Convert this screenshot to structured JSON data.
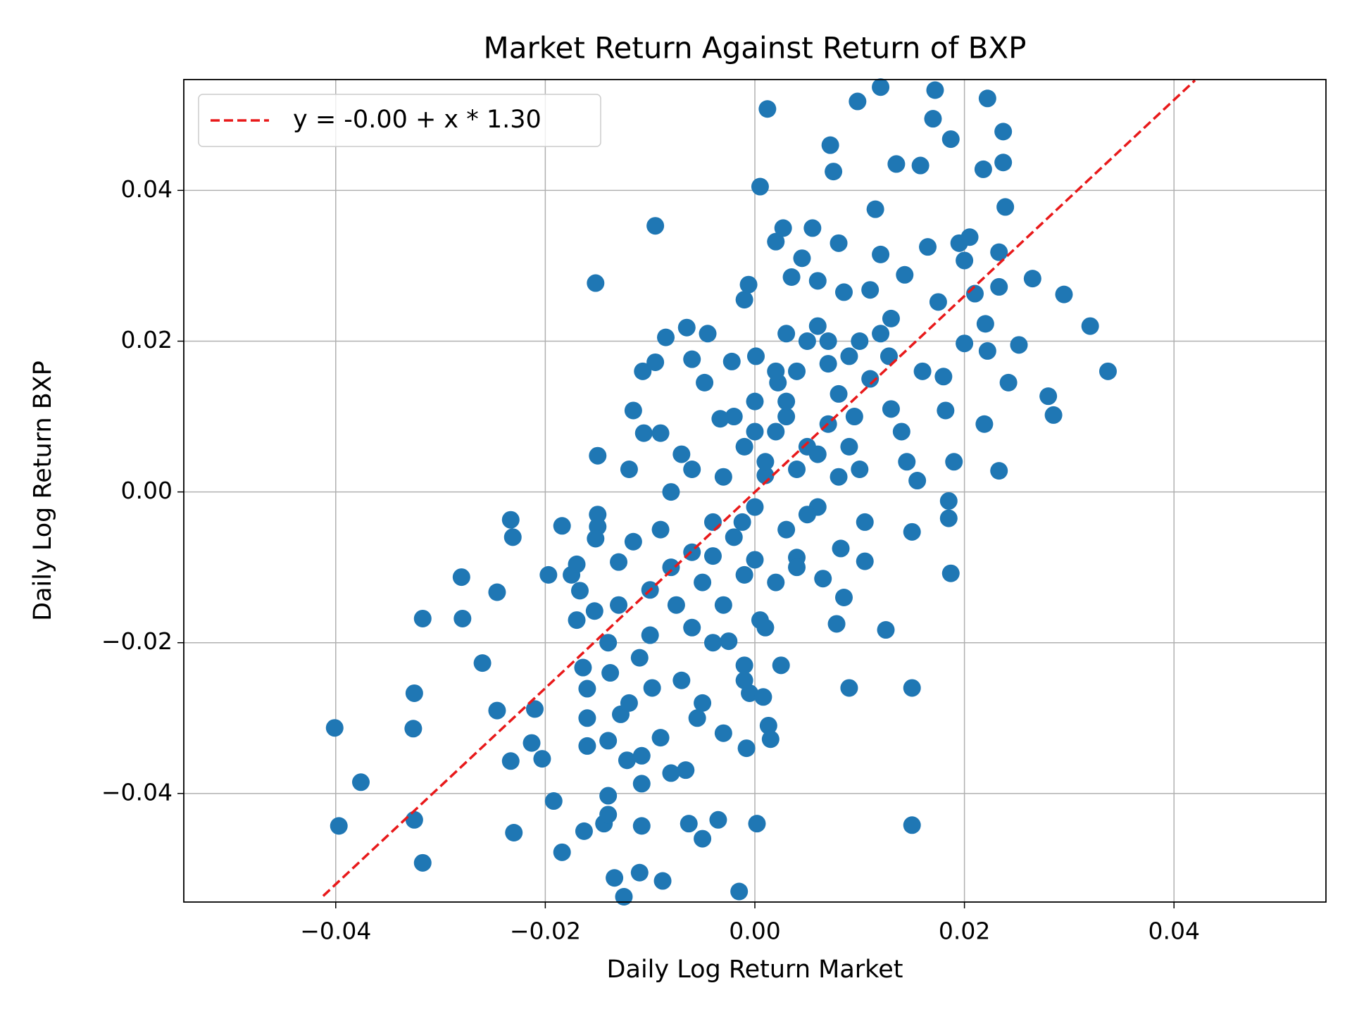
{
  "chart_data": {
    "type": "scatter",
    "title": "Market Return Against Return of BXP",
    "xlabel": "Daily Log Return Market",
    "ylabel": "Daily Log Return BXP",
    "xlim": [
      -0.0545,
      0.0545
    ],
    "ylim": [
      -0.0544,
      0.0547
    ],
    "xticks": [
      {
        "value": -0.04,
        "label": "−0.04"
      },
      {
        "value": -0.02,
        "label": "−0.02"
      },
      {
        "value": 0,
        "label": "0.00"
      },
      {
        "value": 0.02,
        "label": "0.02"
      },
      {
        "value": 0.04,
        "label": "0.04"
      }
    ],
    "yticks": [
      {
        "value": -0.04,
        "label": "−0.04"
      },
      {
        "value": -0.02,
        "label": "−0.02"
      },
      {
        "value": 0,
        "label": "0.00"
      },
      {
        "value": 0.02,
        "label": "0.02"
      },
      {
        "value": 0.04,
        "label": "0.04"
      }
    ],
    "grid": true,
    "legend": "upper left",
    "series": [
      {
        "type": "scatter",
        "color": "#1f77b4",
        "x": [
          -0.0401,
          -0.0397,
          -0.0376,
          -0.0325,
          -0.0325,
          -0.0326,
          -0.0317,
          -0.0317,
          -0.028,
          -0.0279,
          -0.026,
          -0.0246,
          -0.0246,
          -0.0233,
          -0.0231,
          -0.0233,
          -0.023,
          -0.0213,
          -0.021,
          -0.0203,
          -0.0197,
          -0.0192,
          -0.0184,
          -0.0184,
          -0.0175,
          -0.017,
          -0.0167,
          -0.0164,
          -0.016,
          -0.016,
          -0.0163,
          -0.015,
          -0.015,
          -0.0152,
          -0.0153,
          -0.0152,
          -0.015,
          -0.0144,
          -0.014,
          -0.014,
          -0.014,
          -0.0138,
          -0.0134,
          -0.013,
          -0.0125,
          -0.0128,
          -0.0122,
          -0.0116,
          -0.0116,
          -0.011,
          -0.0108,
          -0.0108,
          -0.0108,
          -0.0107,
          -0.0106,
          -0.01,
          -0.0098,
          -0.0095,
          -0.0095,
          -0.009,
          -0.009,
          -0.0088,
          -0.0085,
          -0.008,
          -0.0075,
          -0.007,
          -0.0066,
          -0.0065,
          -0.0063,
          -0.006,
          -0.0055,
          -0.005,
          -0.0048,
          -0.0045,
          -0.004,
          -0.0035,
          -0.0033,
          -0.003,
          -0.0025,
          -0.0022,
          -0.0015,
          -0.0012,
          -0.001,
          -0.001,
          -0.0008,
          -0.0006,
          -0.0005,
          0,
          0,
          0.0001,
          0.0002,
          0.0005,
          0.0005,
          0.0008,
          0.001,
          0.0012,
          0.0013,
          0.0015,
          0.002,
          0.0022,
          0.0025,
          0.0027,
          0.003,
          0.0035,
          0.004,
          0.0045,
          0.005,
          0.0055,
          0.006,
          0.0065,
          0.007,
          0.0072,
          0.0075,
          0.0078,
          0.008,
          0.0082,
          0.0085,
          0.0085,
          0.009,
          0.0095,
          0.0098,
          0.01,
          0.0105,
          0.0105,
          0.011,
          0.0115,
          0.012,
          0.012,
          0.0125,
          0.0128,
          0.013,
          0.0135,
          0.014,
          0.0143,
          0.0145,
          0.015,
          0.015,
          0.015,
          0.0155,
          0.0158,
          0.016,
          0.0165,
          0.017,
          0.0172,
          0.0175,
          0.018,
          0.0182,
          0.0185,
          0.0185,
          0.0187,
          0.019,
          0.0187,
          0.0195,
          0.02,
          0.0205,
          0.02,
          0.021,
          0.0218,
          0.022,
          0.0222,
          0.0219,
          0.0222,
          0.0233,
          0.0233,
          0.0233,
          0.0237,
          0.0237,
          0.0239,
          0.0242,
          0.0252,
          0.0265,
          0.028,
          0.0285,
          0.0295,
          0.032,
          0.0337,
          -0.006,
          -0.005,
          -0.004,
          -0.003,
          -0.002,
          -0.001,
          0,
          0.001,
          0.002,
          0.003,
          0.004,
          0.005,
          0.006,
          0.007,
          0.008,
          0.009,
          0.01,
          0.011,
          0.012,
          0.013,
          0.004,
          0.003,
          0.002,
          0.001,
          -0.001,
          -0.002,
          -0.003,
          -0.004,
          -0.006,
          -0.008,
          -0.009,
          -0.01,
          -0.011,
          -0.012,
          -0.013,
          -0.007,
          -0.005,
          0,
          0.002,
          0.006,
          0.007,
          0.008,
          0.005,
          0.004,
          -0.001,
          0.003,
          0.006,
          0.009,
          -0.006,
          -0.008,
          -0.012,
          -0.014,
          -0.016,
          -0.017
        ],
        "values": [
          -0.0313,
          -0.0443,
          -0.0385,
          -0.0267,
          -0.0435,
          -0.0314,
          -0.0492,
          -0.0168,
          -0.0113,
          -0.0168,
          -0.0227,
          -0.0133,
          -0.029,
          -0.0037,
          -0.006,
          -0.0357,
          -0.0452,
          -0.0333,
          -0.0288,
          -0.0354,
          -0.011,
          -0.041,
          -0.0045,
          -0.0478,
          -0.011,
          -0.0096,
          -0.0131,
          -0.0233,
          -0.0261,
          -0.0337,
          -0.045,
          -0.003,
          -0.0046,
          -0.0062,
          -0.0158,
          0.0277,
          0.0048,
          -0.044,
          -0.0403,
          -0.0428,
          -0.033,
          -0.024,
          -0.0512,
          -0.0093,
          -0.0537,
          -0.0295,
          -0.0356,
          0.0108,
          -0.0066,
          -0.0505,
          -0.0443,
          -0.035,
          -0.0387,
          0.016,
          0.0078,
          -0.019,
          -0.026,
          0.0172,
          0.0353,
          -0.0326,
          0.0078,
          -0.0516,
          0.0205,
          -0.0373,
          -0.015,
          0.005,
          -0.0369,
          0.0218,
          -0.044,
          0.0176,
          -0.03,
          -0.046,
          0.0145,
          0.021,
          -0.0085,
          -0.0435,
          0.0097,
          -0.032,
          -0.0198,
          0.0173,
          -0.053,
          -0.004,
          0.0255,
          -0.023,
          -0.034,
          0.0275,
          -0.0267,
          0.012,
          -0.009,
          0.018,
          -0.044,
          -0.017,
          0.0405,
          -0.0272,
          0.0022,
          0.0508,
          -0.031,
          -0.0328,
          0.0332,
          0.0145,
          -0.023,
          0.035,
          0.01,
          0.0285,
          -0.0087,
          0.031,
          0.006,
          0.035,
          -0.002,
          -0.0115,
          0.02,
          0.046,
          0.0425,
          -0.0175,
          0.033,
          -0.0075,
          0.0265,
          -0.014,
          -0.026,
          0.01,
          0.0518,
          0.02,
          -0.004,
          -0.0092,
          0.0268,
          0.0375,
          0.0315,
          0.0537,
          -0.0183,
          0.018,
          0.023,
          0.0435,
          0.008,
          0.0288,
          0.004,
          -0.0053,
          -0.026,
          -0.0442,
          0.0015,
          0.0433,
          0.016,
          0.0325,
          0.0495,
          0.0533,
          0.0252,
          0.0153,
          0.0108,
          -0.0012,
          -0.0035,
          -0.0108,
          0.004,
          0.0468,
          0.033,
          0.0197,
          0.0338,
          0.0307,
          0.0263,
          0.0428,
          0.0223,
          0.0187,
          0.009,
          0.0522,
          0.0318,
          0.0272,
          0.0028,
          0.0478,
          0.0437,
          0.0378,
          0.0145,
          0.0195,
          0.0283,
          0.0127,
          0.0102,
          0.0262,
          0.022,
          0.016,
          -0.008,
          -0.012,
          -0.004,
          -0.015,
          -0.006,
          -0.011,
          -0.002,
          0.004,
          0.008,
          0.012,
          0.016,
          0.02,
          0.022,
          0.017,
          0.013,
          0.006,
          0.003,
          0.015,
          0.021,
          0.011,
          0.003,
          -0.005,
          -0.012,
          -0.018,
          0.006,
          0.01,
          0.002,
          -0.02,
          -0.018,
          -0.01,
          -0.005,
          -0.013,
          -0.022,
          -0.028,
          -0.015,
          -0.025,
          -0.028,
          0.008,
          0.016,
          0.005,
          0.009,
          0.002,
          -0.003,
          -0.01,
          -0.025,
          0.021,
          0.028,
          0.018,
          0.003,
          0,
          0.003,
          -0.02,
          -0.03,
          -0.017
        ]
      },
      {
        "type": "line",
        "name": "y = -0.00 + x * 1.30",
        "color": "#e8191a",
        "dashed": true,
        "x": [
          -0.0412,
          0.042
        ],
        "values": [
          -0.0536,
          0.0546
        ]
      }
    ]
  }
}
